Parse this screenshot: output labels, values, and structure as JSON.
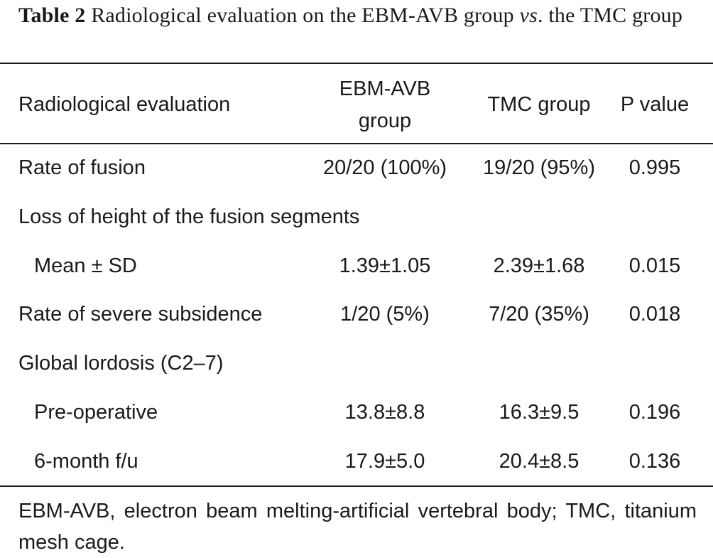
{
  "caption": {
    "label": "Table 2",
    "text_before": " Radiological evaluation on the EBM-AVB group ",
    "italic": "vs",
    "text_after": ". the TMC group"
  },
  "table": {
    "headers": {
      "col1": "Radiological evaluation",
      "col2_line1": "EBM-AVB",
      "col2_line2": "group",
      "col3": "TMC group",
      "col4": "P value"
    },
    "rows": [
      {
        "label": "Rate of fusion",
        "ebm": "20/20 (100%)",
        "tmc": "19/20 (95%)",
        "p": "0.995",
        "indent": false
      },
      {
        "label": "Loss of height of the fusion segments",
        "ebm": "",
        "tmc": "",
        "p": "",
        "indent": false
      },
      {
        "label": "Mean ± SD",
        "ebm": "1.39±1.05",
        "tmc": "2.39±1.68",
        "p": "0.015",
        "indent": true
      },
      {
        "label": "Rate of severe subsidence",
        "ebm": "1/20 (5%)",
        "tmc": "7/20 (35%)",
        "p": "0.018",
        "indent": false
      },
      {
        "label": "Global lordosis (C2–7)",
        "ebm": "",
        "tmc": "",
        "p": "",
        "indent": false
      },
      {
        "label": "Pre-operative",
        "ebm": "13.8±8.8",
        "tmc": "16.3±9.5",
        "p": "0.196",
        "indent": true
      },
      {
        "label": "6-month f/u",
        "ebm": "17.9±5.0",
        "tmc": "20.4±8.5",
        "p": "0.136",
        "indent": true
      }
    ]
  },
  "footnote": "EBM-AVB, electron beam melting-artificial vertebral body; TMC, titanium mesh cage."
}
